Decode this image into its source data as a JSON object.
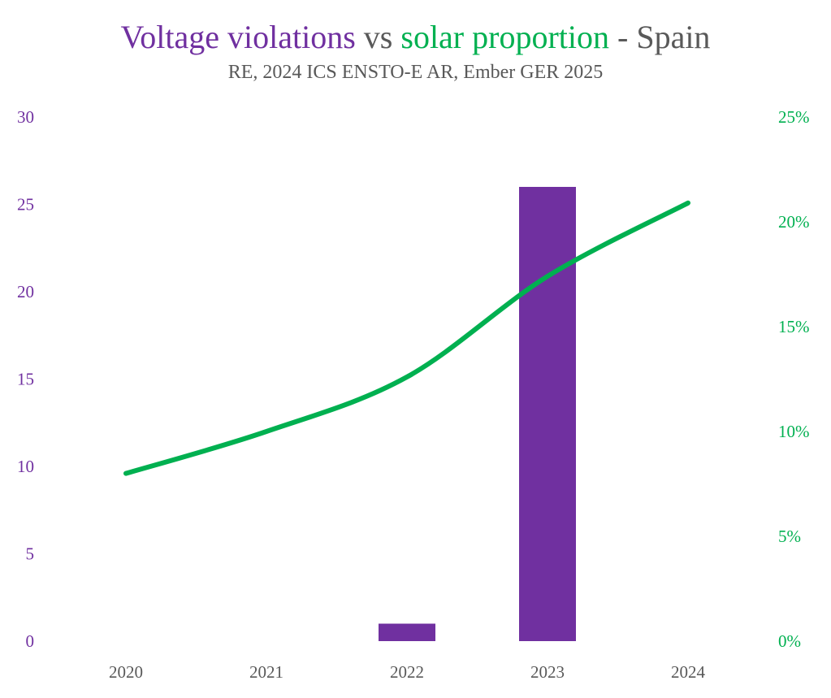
{
  "chart_data": {
    "type": "bar+line",
    "title_parts": [
      {
        "text": "Voltage violations",
        "color": "#7030a0"
      },
      {
        "text": " vs ",
        "color": "#595959"
      },
      {
        "text": "solar proportion",
        "color": "#00b050"
      },
      {
        "text": " - Spain",
        "color": "#595959"
      }
    ],
    "subtitle": "RE, 2024 ICS ENSTO-E AR, Ember GER 2025",
    "categories": [
      "2020",
      "2021",
      "2022",
      "2023",
      "2024"
    ],
    "series": [
      {
        "name": "Voltage violations",
        "type": "bar",
        "axis": "left",
        "color": "#7030a0",
        "values": [
          0,
          0,
          1,
          26,
          0
        ]
      },
      {
        "name": "Solar proportion",
        "type": "line",
        "axis": "right",
        "color": "#00b050",
        "smooth": true,
        "values": [
          8.0,
          10.0,
          12.6,
          17.4,
          20.9
        ]
      }
    ],
    "y_left": {
      "range": [
        0,
        30
      ],
      "ticks": [
        "0",
        "5",
        "10",
        "15",
        "20",
        "25",
        "30"
      ],
      "tick_values": [
        0,
        5,
        10,
        15,
        20,
        25,
        30
      ],
      "color": "#7030a0"
    },
    "y_right": {
      "range": [
        0,
        25
      ],
      "ticks": [
        "0%",
        "5%",
        "10%",
        "15%",
        "20%",
        "25%"
      ],
      "tick_values": [
        0,
        5,
        10,
        15,
        20,
        25
      ],
      "unit": "%",
      "color": "#00b050"
    },
    "xlabel": "",
    "ylabel": "",
    "grid": false,
    "legend": "none"
  }
}
